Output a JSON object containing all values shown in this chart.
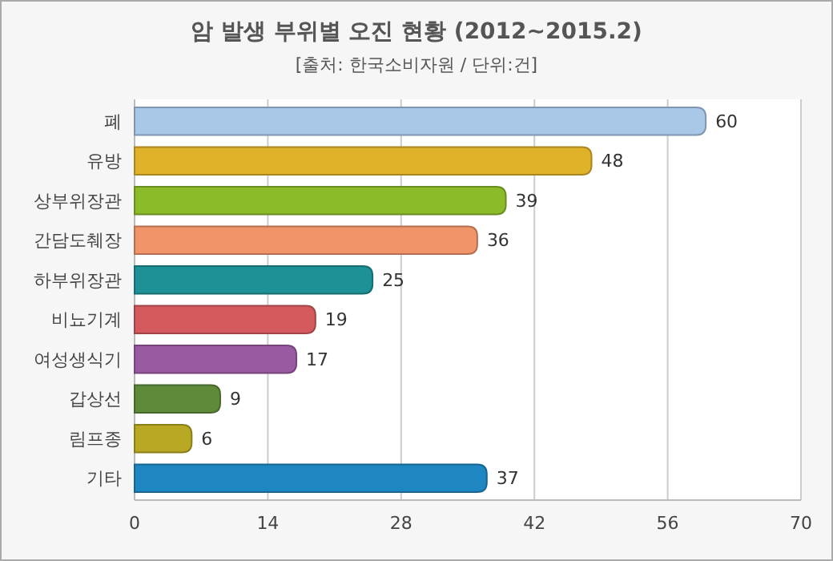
{
  "chart_data": {
    "type": "bar",
    "orientation": "horizontal",
    "title": "암 발생 부위별 오진 현황 (2012~2015.2)",
    "subtitle": "[출처: 한국소비자원 / 단위:건]",
    "categories": [
      "폐",
      "유방",
      "상부위장관",
      "간담도췌장",
      "하부위장관",
      "비뇨기계",
      "여성생식기",
      "갑상선",
      "림프종",
      "기타"
    ],
    "values": [
      60,
      48,
      39,
      36,
      25,
      19,
      17,
      9,
      6,
      37
    ],
    "colors": [
      "#a9c8e8",
      "#e0b22a",
      "#8cbb2a",
      "#f0946a",
      "#1e9196",
      "#d45a5e",
      "#9a5aa2",
      "#5e8a3a",
      "#b8a824",
      "#1e86c0"
    ],
    "xlim": [
      0,
      70
    ],
    "xticks": [
      0,
      14,
      28,
      42,
      56,
      70
    ],
    "grid": "x",
    "data_labels": true
  }
}
